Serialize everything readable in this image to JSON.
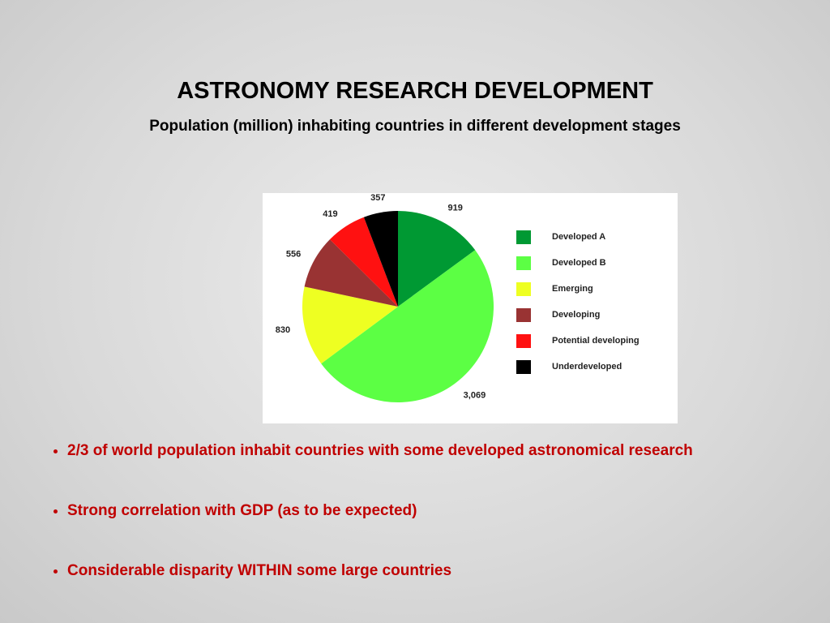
{
  "chart_data": {
    "type": "pie",
    "title": "ASTRONOMY RESEARCH DEVELOPMENT",
    "subtitle": "Population (million) inhabiting countries in different development stages",
    "categories": [
      "Developed A",
      "Developed B",
      "Emerging",
      "Developing",
      "Potential developing",
      "Underdeveloped"
    ],
    "values": [
      919,
      3069,
      830,
      556,
      419,
      357
    ],
    "value_labels": [
      "919",
      "3,069",
      "830",
      "556",
      "419",
      "357"
    ],
    "colors": [
      "#009933",
      "#5cff44",
      "#eeff22",
      "#993333",
      "#ff1111",
      "#000000"
    ],
    "legend": "right"
  },
  "bullets": [
    "2/3 of world population inhabit countries with some developed astronomical research",
    "Strong correlation with GDP (as to be expected)",
    "Considerable disparity WITHIN some large countries"
  ]
}
